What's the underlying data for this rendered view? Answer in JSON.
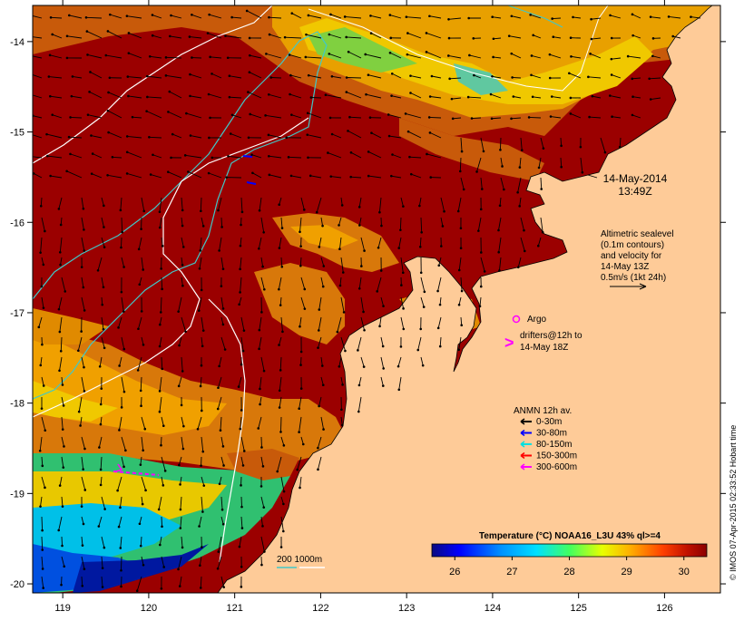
{
  "map": {
    "lon_ticks": [
      "119",
      "120",
      "121",
      "122",
      "123",
      "124",
      "125",
      "126"
    ],
    "lat_ticks": [
      "-14",
      "-15",
      "-16",
      "-17",
      "-18",
      "-19",
      "-20"
    ],
    "lon_range": [
      118.65,
      126.65
    ],
    "lat_range": [
      -20.1,
      -13.6
    ],
    "timestamp_line1": "14-May-2014",
    "timestamp_line2": "13:49Z",
    "altimetric_lines": [
      "Altimetric sealevel",
      "(0.1m contours)",
      "and velocity for",
      "14-May 13Z",
      "0.5m/s (1kt 24h)"
    ],
    "argo_label": "Argo",
    "drifters_lines": [
      "drifters@12h to",
      "14-May 18Z"
    ],
    "anmn_title": "ANMN 12h av.",
    "anmn_items": [
      {
        "label": "0-30m",
        "color": "#000000"
      },
      {
        "label": "30-80m",
        "color": "#0000ff"
      },
      {
        "label": "80-150m",
        "color": "#00e0e0"
      },
      {
        "label": "150-300m",
        "color": "#ff0000"
      },
      {
        "label": "300-600m",
        "color": "#ff00ff"
      }
    ],
    "colorbar_title": "Temperature (°C) NOAA16_L3U 43% ql>=4",
    "colorbar_ticks": [
      "26",
      "27",
      "28",
      "29",
      "30"
    ],
    "colorbar_range": [
      25.6,
      30.4
    ],
    "isobath_label": "200  1000m",
    "credit": "© IMOS 07-Apr-2015 02:33:52 Hobart time",
    "colors": {
      "land": "#fecb98",
      "warm_sea": "#9b0000",
      "isobath_200": "#40c8c8",
      "isobath_1000": "#ffffff",
      "argo": "#ff00ff",
      "drifter": "#ff00ff"
    }
  }
}
